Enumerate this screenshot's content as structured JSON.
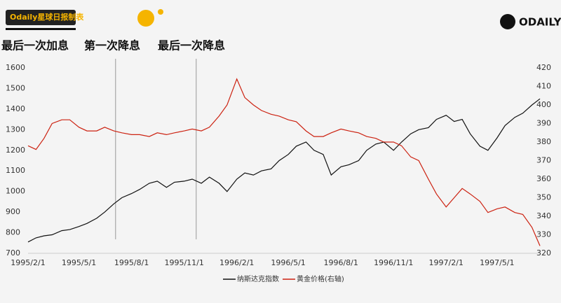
{
  "header": {
    "source": "Odaily星球日报制表",
    "logo": "ODAILY"
  },
  "chart_data": {
    "type": "line",
    "annotations": [
      "最后一次加息",
      "第一次降息",
      "最后一次降息"
    ],
    "vlines": [
      "1995/7/4",
      "1995/11/22"
    ],
    "x": [
      "1995/2/1",
      "1995/2/15",
      "1995/3/1",
      "1995/3/15",
      "1995/4/1",
      "1995/4/15",
      "1995/5/1",
      "1995/5/15",
      "1995/6/1",
      "1995/6/15",
      "1995/7/1",
      "1995/7/15",
      "1995/8/1",
      "1995/8/15",
      "1995/9/1",
      "1995/9/15",
      "1995/10/1",
      "1995/10/15",
      "1995/11/1",
      "1995/11/15",
      "1995/12/1",
      "1995/12/15",
      "1996/1/1",
      "1996/1/15",
      "1996/2/1",
      "1996/2/15",
      "1996/3/1",
      "1996/3/15",
      "1996/4/1",
      "1996/4/15",
      "1996/5/1",
      "1996/5/15",
      "1996/6/1",
      "1996/6/15",
      "1996/7/1",
      "1996/7/15",
      "1996/8/1",
      "1996/8/15",
      "1996/9/1",
      "1996/9/15",
      "1996/10/1",
      "1996/10/15",
      "1996/11/1",
      "1996/11/15",
      "1996/12/1",
      "1996/12/15",
      "1997/1/1",
      "1997/1/15",
      "1997/2/1",
      "1997/2/15",
      "1997/3/1",
      "1997/3/15",
      "1997/4/1",
      "1997/4/15",
      "1997/5/1",
      "1997/5/15",
      "1997/6/1",
      "1997/6/15",
      "1997/7/1",
      "1997/7/15"
    ],
    "xlim": [
      "1995/2/1",
      "1997/7/15"
    ],
    "xticks": [
      "1995/2/1",
      "1995/5/1",
      "1995/8/1",
      "1995/11/1",
      "1996/2/1",
      "1996/5/1",
      "1996/8/1",
      "1996/11/1",
      "1997/2/1",
      "1997/5/1"
    ],
    "ylim": [
      700,
      1600
    ],
    "yticks": [
      700,
      800,
      900,
      1000,
      1100,
      1200,
      1300,
      1400,
      1500,
      1600
    ],
    "y2lim": [
      320,
      420
    ],
    "y2ticks": [
      320,
      330,
      340,
      350,
      360,
      370,
      380,
      390,
      400,
      410,
      420
    ],
    "series": [
      {
        "name": "纳斯达克指数",
        "color": "#111111",
        "values": [
          755,
          775,
          785,
          790,
          810,
          815,
          830,
          845,
          870,
          900,
          940,
          970,
          990,
          1010,
          1040,
          1050,
          1020,
          1045,
          1050,
          1060,
          1040,
          1070,
          1040,
          1000,
          1060,
          1090,
          1080,
          1100,
          1110,
          1150,
          1180,
          1220,
          1240,
          1200,
          1180,
          1080,
          1120,
          1130,
          1150,
          1200,
          1230,
          1240,
          1200,
          1240,
          1280,
          1300,
          1310,
          1350,
          1370,
          1340,
          1350,
          1280,
          1220,
          1200,
          1260,
          1320,
          1360,
          1380,
          1420,
          1450
        ]
      },
      {
        "name": "黄金价格(右轴)",
        "color": "#cc2211",
        "axis": "y2",
        "values": [
          378,
          376,
          382,
          390,
          392,
          392,
          388,
          386,
          386,
          388,
          386,
          385,
          384,
          384,
          383,
          385,
          384,
          385,
          386,
          387,
          386,
          388,
          394,
          400,
          414,
          404,
          400,
          397,
          395,
          394,
          392,
          391,
          386,
          383,
          383,
          385,
          387,
          386,
          385,
          383,
          382,
          380,
          380,
          378,
          372,
          370,
          360,
          352,
          345,
          350,
          355,
          352,
          348,
          342,
          344,
          345,
          342,
          341,
          334,
          324
        ]
      }
    ]
  }
}
